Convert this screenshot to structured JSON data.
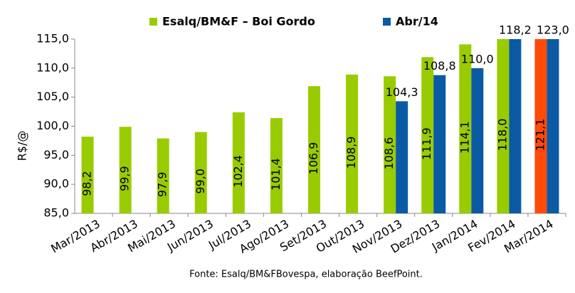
{
  "chart_data": {
    "type": "bar",
    "categories": [
      "Mar/2013",
      "Abr/2013",
      "Mai/2013",
      "Jun/2013",
      "Jul/2013",
      "Ago/2013",
      "Set/2013",
      "Out/2013",
      "Nov/2013",
      "Dez/2013",
      "Jan/2014",
      "Fev/2014",
      "Mar/2014"
    ],
    "series": [
      {
        "name": "Esalq/BM&F – Boi Gordo",
        "color": "#99cc00",
        "point_colors": [
          null,
          null,
          null,
          null,
          null,
          null,
          null,
          null,
          null,
          null,
          null,
          null,
          "#ff4a0a"
        ],
        "values": [
          98.2,
          99.9,
          97.9,
          99.0,
          102.4,
          101.4,
          106.9,
          108.9,
          108.6,
          111.9,
          114.1,
          118.0,
          121.1
        ],
        "value_labels": [
          "98,2",
          "99,9",
          "97,9",
          "99,0",
          "102,4",
          "101,4",
          "106,9",
          "108,9",
          "108,6",
          "111,9",
          "114,1",
          "118,0",
          "121,1"
        ]
      },
      {
        "name": "Abr/14",
        "color": "#0b5aa4",
        "values": [
          null,
          null,
          null,
          null,
          null,
          null,
          null,
          null,
          104.3,
          108.8,
          110.0,
          118.2,
          123.0
        ],
        "value_labels": [
          null,
          null,
          null,
          null,
          null,
          null,
          null,
          null,
          "104,3",
          "108,8",
          "110,0",
          "118,2",
          "123,0"
        ]
      }
    ],
    "y_label": "R$/@",
    "ylim": [
      85,
      115
    ],
    "yticks": [
      {
        "value": 85,
        "label": "85,0"
      },
      {
        "value": 90,
        "label": "90,0"
      },
      {
        "value": 95,
        "label": "95,0"
      },
      {
        "value": 100,
        "label": "100,0"
      },
      {
        "value": 105,
        "label": "105,0"
      },
      {
        "value": 110,
        "label": "110,0"
      },
      {
        "value": 115,
        "label": "115,0"
      }
    ],
    "grid": false,
    "legend": "top",
    "source": "Fonte: Esalq/BM&FBovespa, elaboração BeefPoint."
  }
}
